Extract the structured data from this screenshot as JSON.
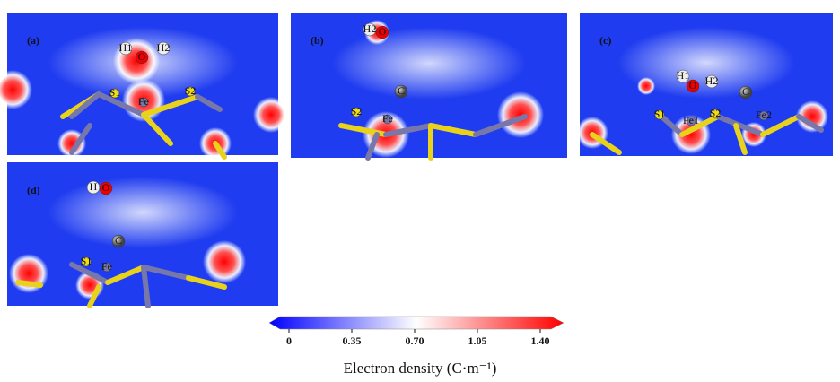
{
  "panels": [
    {
      "label": "(a)",
      "atoms": [
        "H1",
        "O",
        "H2",
        "S1",
        "S2",
        "Fe"
      ]
    },
    {
      "label": "(b)",
      "atoms": [
        "H2",
        "O",
        "C",
        "S2",
        "Fe"
      ]
    },
    {
      "label": "(c)",
      "atoms": [
        "H1",
        "O",
        "H2",
        "C",
        "S1",
        "Fe1",
        "S2",
        "Fe2"
      ]
    },
    {
      "label": "(d)",
      "atoms": [
        "H",
        "O",
        "C",
        "S1",
        "Fe"
      ]
    }
  ],
  "colorbar": {
    "min": 0,
    "max": 1.4,
    "ticks": [
      0,
      0.35,
      {
        "value": 0.7,
        "label": "0.70"
      },
      1.05,
      {
        "value": 1.4,
        "label": "1.40"
      }
    ],
    "label": "Electron density (C·m⁻¹)"
  }
}
